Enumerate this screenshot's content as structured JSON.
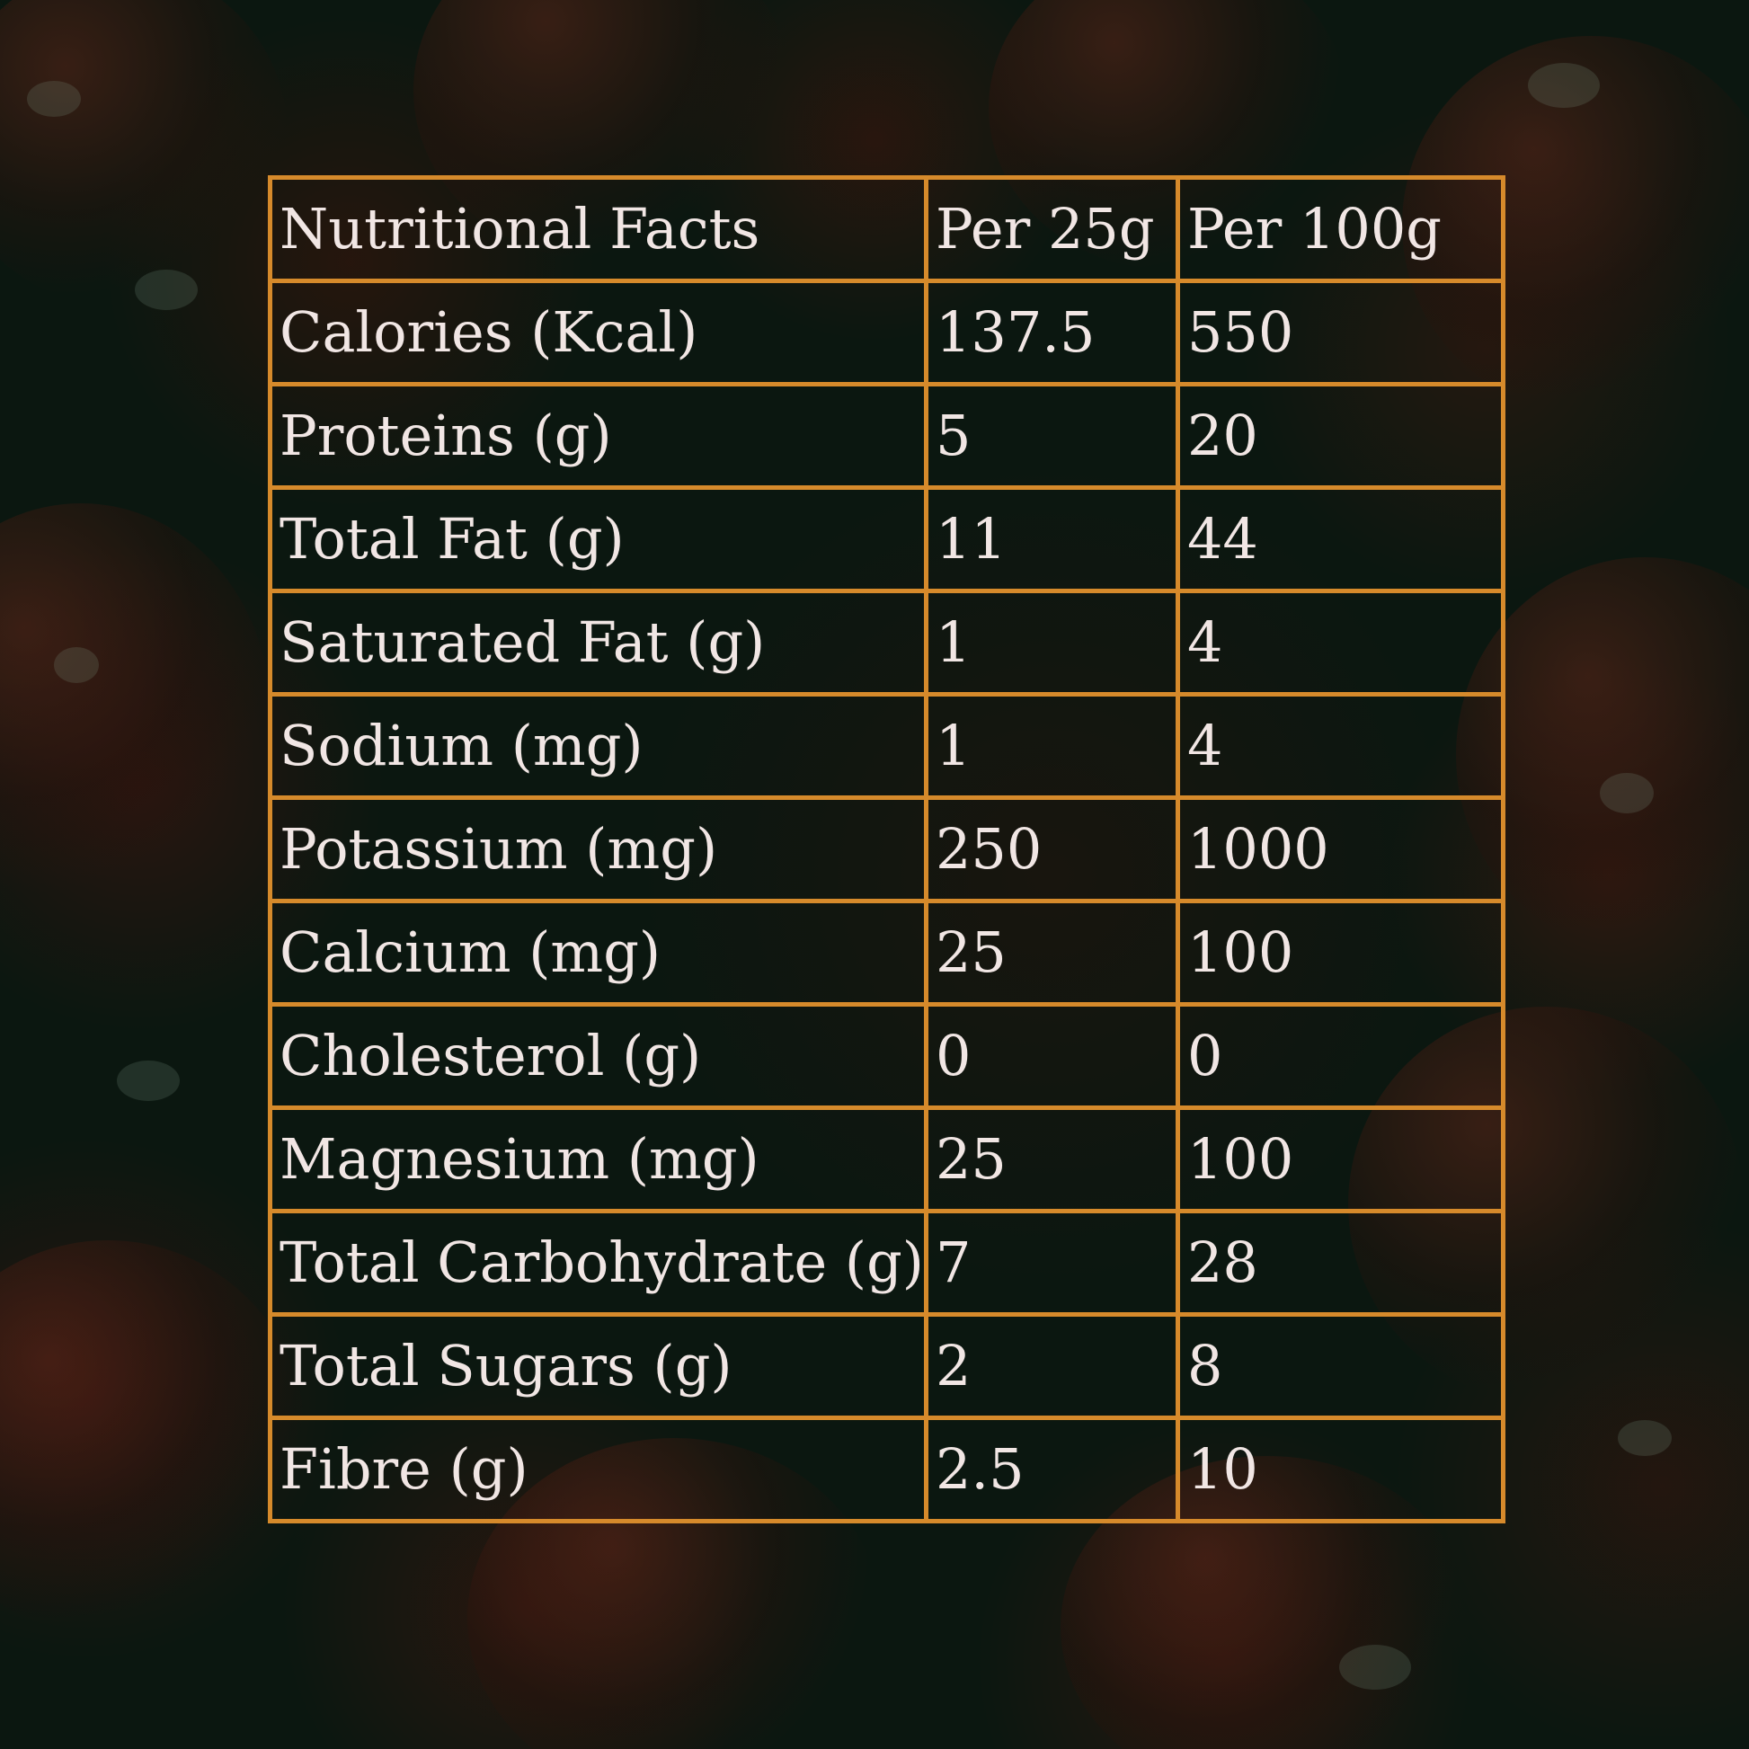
{
  "table": {
    "headers": [
      "Nutritional Facts",
      "Per 25g",
      "Per 100g"
    ],
    "rows": [
      [
        "Calories (Kcal)",
        "137.5",
        "550"
      ],
      [
        "Proteins (g)",
        "5",
        "20"
      ],
      [
        "Total Fat (g)",
        "11",
        "44"
      ],
      [
        "Saturated Fat (g)",
        "1",
        "4"
      ],
      [
        "Sodium (mg)",
        "1",
        "4"
      ],
      [
        "Potassium (mg)",
        "250",
        "1000"
      ],
      [
        "Calcium (mg)",
        "25",
        "100"
      ],
      [
        "Cholesterol (g)",
        "0",
        "0"
      ],
      [
        "Magnesium (mg)",
        "25",
        "100"
      ],
      [
        "Total Carbohydrate (g)",
        "7",
        "28"
      ],
      [
        "Total Sugars (g)",
        "2",
        "8"
      ],
      [
        "Fibre (g)",
        "2.5",
        "10"
      ]
    ]
  },
  "colors": {
    "border": "#d68a2b",
    "text": "#f1e6e4",
    "background": "#0b1710"
  }
}
